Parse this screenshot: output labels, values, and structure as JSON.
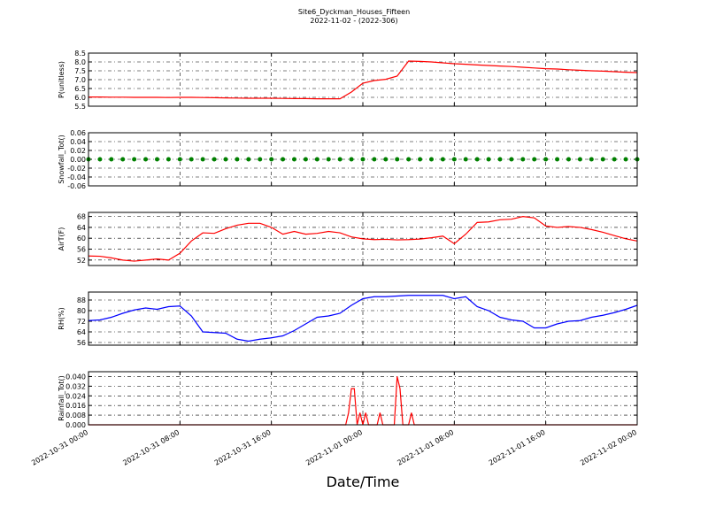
{
  "chart_data": [
    {
      "type": "line",
      "title": "Site6_Dyckman_Houses_Fifteen",
      "subtitle": "2022-11-02 - (2022-306)",
      "ylabel": "P(unitless)",
      "color": "#ff0000",
      "x": [
        "2022-10-31 00:00",
        "2022-10-31 01:00",
        "2022-10-31 02:00",
        "2022-10-31 03:00",
        "2022-10-31 04:00",
        "2022-10-31 05:00",
        "2022-10-31 06:00",
        "2022-10-31 07:00",
        "2022-10-31 08:00",
        "2022-10-31 09:00",
        "2022-10-31 10:00",
        "2022-10-31 11:00",
        "2022-10-31 12:00",
        "2022-10-31 13:00",
        "2022-10-31 14:00",
        "2022-10-31 15:00",
        "2022-10-31 16:00",
        "2022-10-31 17:00",
        "2022-10-31 18:00",
        "2022-10-31 19:00",
        "2022-10-31 20:00",
        "2022-10-31 21:00",
        "2022-10-31 22:00",
        "2022-10-31 23:00",
        "2022-11-01 00:00",
        "2022-11-01 01:00",
        "2022-11-01 02:00",
        "2022-11-01 03:00",
        "2022-11-01 04:00",
        "2022-11-01 05:00",
        "2022-11-01 06:00",
        "2022-11-01 07:00",
        "2022-11-01 08:00",
        "2022-11-01 09:00",
        "2022-11-01 10:00",
        "2022-11-01 11:00",
        "2022-11-01 12:00",
        "2022-11-01 13:00",
        "2022-11-01 14:00",
        "2022-11-01 15:00",
        "2022-11-01 16:00",
        "2022-11-01 17:00",
        "2022-11-01 18:00",
        "2022-11-01 19:00",
        "2022-11-01 20:00",
        "2022-11-01 21:00",
        "2022-11-01 22:00",
        "2022-11-01 23:00",
        "2022-11-02 00:00"
      ],
      "values": [
        6.02,
        6.02,
        6.01,
        6.01,
        6.0,
        6.0,
        6.0,
        5.99,
        6.0,
        6.0,
        5.99,
        5.98,
        5.97,
        5.96,
        5.95,
        5.95,
        5.95,
        5.94,
        5.93,
        5.93,
        5.92,
        5.92,
        5.92,
        6.3,
        6.8,
        6.95,
        7.02,
        7.2,
        8.05,
        8.03,
        8.0,
        7.95,
        7.9,
        7.87,
        7.83,
        7.8,
        7.77,
        7.74,
        7.7,
        7.66,
        7.62,
        7.6,
        7.56,
        7.53,
        7.5,
        7.48,
        7.45,
        7.42,
        7.4
      ],
      "xlim": [
        "2022-10-31 00:00",
        "2022-11-02 00:00"
      ],
      "xticks": [
        "2022-10-31 00:00",
        "2022-10-31 08:00",
        "2022-10-31 16:00",
        "2022-11-01 00:00",
        "2022-11-01 08:00",
        "2022-11-01 16:00",
        "2022-11-02 00:00"
      ],
      "ylim": [
        5.5,
        8.5
      ],
      "yticks": [
        5.5,
        {
          "value": 6,
          "label": "6.0"
        },
        6.5,
        {
          "value": 7,
          "label": "7.0"
        },
        7.5,
        {
          "value": 8,
          "label": "8.0"
        },
        8.5
      ],
      "grid": true
    },
    {
      "type": "scatter",
      "ylabel": "Snowfall_Tot()",
      "color": "#008000",
      "x": [
        "2022-10-31 00:00",
        "2022-10-31 01:00",
        "2022-10-31 02:00",
        "2022-10-31 03:00",
        "2022-10-31 04:00",
        "2022-10-31 05:00",
        "2022-10-31 06:00",
        "2022-10-31 07:00",
        "2022-10-31 08:00",
        "2022-10-31 09:00",
        "2022-10-31 10:00",
        "2022-10-31 11:00",
        "2022-10-31 12:00",
        "2022-10-31 13:00",
        "2022-10-31 14:00",
        "2022-10-31 15:00",
        "2022-10-31 16:00",
        "2022-10-31 17:00",
        "2022-10-31 18:00",
        "2022-10-31 19:00",
        "2022-10-31 20:00",
        "2022-10-31 21:00",
        "2022-10-31 22:00",
        "2022-10-31 23:00",
        "2022-11-01 00:00",
        "2022-11-01 01:00",
        "2022-11-01 02:00",
        "2022-11-01 03:00",
        "2022-11-01 04:00",
        "2022-11-01 05:00",
        "2022-11-01 06:00",
        "2022-11-01 07:00",
        "2022-11-01 08:00",
        "2022-11-01 09:00",
        "2022-11-01 10:00",
        "2022-11-01 11:00",
        "2022-11-01 12:00",
        "2022-11-01 13:00",
        "2022-11-01 14:00",
        "2022-11-01 15:00",
        "2022-11-01 16:00",
        "2022-11-01 17:00",
        "2022-11-01 18:00",
        "2022-11-01 19:00",
        "2022-11-01 20:00",
        "2022-11-01 21:00",
        "2022-11-01 22:00",
        "2022-11-01 23:00",
        "2022-11-02 00:00"
      ],
      "values": [
        0,
        0,
        0,
        0,
        0,
        0,
        0,
        0,
        0,
        0,
        0,
        0,
        0,
        0,
        0,
        0,
        0,
        0,
        0,
        0,
        0,
        0,
        0,
        0,
        0,
        0,
        0,
        0,
        0,
        0,
        0,
        0,
        0,
        0,
        0,
        0,
        0,
        0,
        0,
        0,
        0,
        0,
        0,
        0,
        0,
        0,
        0,
        0,
        0
      ],
      "xlim": [
        "2022-10-31 00:00",
        "2022-11-02 00:00"
      ],
      "xticks": [
        "2022-10-31 00:00",
        "2022-10-31 08:00",
        "2022-10-31 16:00",
        "2022-11-01 00:00",
        "2022-11-01 08:00",
        "2022-11-01 16:00",
        "2022-11-02 00:00"
      ],
      "ylim": [
        -0.06,
        0.06
      ],
      "yticks": [
        -0.06,
        -0.04,
        -0.02,
        {
          "value": 0,
          "label": "0.00"
        },
        0.02,
        0.04,
        0.06
      ],
      "grid": true
    },
    {
      "type": "line",
      "ylabel": "AirT(F)",
      "color": "#ff0000",
      "x": [
        "2022-10-31 00:00",
        "2022-10-31 01:00",
        "2022-10-31 02:00",
        "2022-10-31 03:00",
        "2022-10-31 04:00",
        "2022-10-31 05:00",
        "2022-10-31 06:00",
        "2022-10-31 07:00",
        "2022-10-31 08:00",
        "2022-10-31 09:00",
        "2022-10-31 10:00",
        "2022-10-31 11:00",
        "2022-10-31 12:00",
        "2022-10-31 13:00",
        "2022-10-31 14:00",
        "2022-10-31 15:00",
        "2022-10-31 16:00",
        "2022-10-31 17:00",
        "2022-10-31 18:00",
        "2022-10-31 19:00",
        "2022-10-31 20:00",
        "2022-10-31 21:00",
        "2022-10-31 22:00",
        "2022-10-31 23:00",
        "2022-11-01 00:00",
        "2022-11-01 01:00",
        "2022-11-01 02:00",
        "2022-11-01 03:00",
        "2022-11-01 04:00",
        "2022-11-01 05:00",
        "2022-11-01 06:00",
        "2022-11-01 07:00",
        "2022-11-01 08:00",
        "2022-11-01 09:00",
        "2022-11-01 10:00",
        "2022-11-01 11:00",
        "2022-11-01 12:00",
        "2022-11-01 13:00",
        "2022-11-01 14:00",
        "2022-11-01 15:00",
        "2022-11-01 16:00",
        "2022-11-01 17:00",
        "2022-11-01 18:00",
        "2022-11-01 19:00",
        "2022-11-01 20:00",
        "2022-11-01 21:00",
        "2022-11-01 22:00",
        "2022-11-01 23:00",
        "2022-11-02 00:00"
      ],
      "values": [
        53.5,
        53.4,
        52.8,
        52.0,
        51.6,
        52.0,
        52.4,
        52.0,
        54.5,
        59.0,
        62.0,
        61.8,
        63.5,
        64.8,
        65.5,
        65.5,
        64.0,
        61.5,
        62.5,
        61.5,
        61.8,
        62.5,
        62.0,
        60.5,
        59.8,
        59.5,
        59.6,
        59.4,
        59.5,
        59.7,
        60.2,
        60.8,
        58.0,
        61.5,
        65.8,
        66.0,
        66.8,
        67.0,
        68.0,
        67.5,
        64.5,
        64.0,
        64.3,
        64.0,
        63.2,
        62.2,
        61.0,
        59.8,
        59.0
      ],
      "xlim": [
        "2022-10-31 00:00",
        "2022-11-02 00:00"
      ],
      "xticks": [
        "2022-10-31 00:00",
        "2022-10-31 08:00",
        "2022-10-31 16:00",
        "2022-11-01 00:00",
        "2022-11-01 08:00",
        "2022-11-01 16:00",
        "2022-11-02 00:00"
      ],
      "ylim": [
        50,
        69.5
      ],
      "yticks": [
        52,
        56,
        60,
        64,
        68
      ],
      "grid": true
    },
    {
      "type": "line",
      "ylabel": "RH(%)",
      "color": "#0000ff",
      "x": [
        "2022-10-31 00:00",
        "2022-10-31 01:00",
        "2022-10-31 02:00",
        "2022-10-31 03:00",
        "2022-10-31 04:00",
        "2022-10-31 05:00",
        "2022-10-31 06:00",
        "2022-10-31 07:00",
        "2022-10-31 08:00",
        "2022-10-31 09:00",
        "2022-10-31 10:00",
        "2022-10-31 11:00",
        "2022-10-31 12:00",
        "2022-10-31 13:00",
        "2022-10-31 14:00",
        "2022-10-31 15:00",
        "2022-10-31 16:00",
        "2022-10-31 17:00",
        "2022-10-31 18:00",
        "2022-10-31 19:00",
        "2022-10-31 20:00",
        "2022-10-31 21:00",
        "2022-10-31 22:00",
        "2022-10-31 23:00",
        "2022-11-01 00:00",
        "2022-11-01 01:00",
        "2022-11-01 02:00",
        "2022-11-01 03:00",
        "2022-11-01 04:00",
        "2022-11-01 05:00",
        "2022-11-01 06:00",
        "2022-11-01 07:00",
        "2022-11-01 08:00",
        "2022-11-01 09:00",
        "2022-11-01 10:00",
        "2022-11-01 11:00",
        "2022-11-01 12:00",
        "2022-11-01 13:00",
        "2022-11-01 14:00",
        "2022-11-01 15:00",
        "2022-11-01 16:00",
        "2022-11-01 17:00",
        "2022-11-01 18:00",
        "2022-11-01 19:00",
        "2022-11-01 20:00",
        "2022-11-01 21:00",
        "2022-11-01 22:00",
        "2022-11-01 23:00",
        "2022-11-02 00:00"
      ],
      "values": [
        72.5,
        73,
        75,
        78,
        80.5,
        82,
        81,
        83,
        83.5,
        76,
        64,
        63.5,
        63,
        58.5,
        57,
        58.5,
        59.5,
        61,
        65,
        70,
        75,
        76,
        78,
        84,
        89,
        90.5,
        90.5,
        91,
        91.5,
        91.5,
        91.5,
        91.5,
        89,
        90.5,
        83,
        80,
        75,
        73,
        72,
        67,
        67,
        70,
        72,
        72.5,
        75,
        76.5,
        78.5,
        81,
        84
      ],
      "xlim": [
        "2022-10-31 00:00",
        "2022-11-02 00:00"
      ],
      "xticks": [
        "2022-10-31 00:00",
        "2022-10-31 08:00",
        "2022-10-31 16:00",
        "2022-11-01 00:00",
        "2022-11-01 08:00",
        "2022-11-01 16:00",
        "2022-11-02 00:00"
      ],
      "ylim": [
        54,
        94
      ],
      "yticks": [
        56,
        64,
        72,
        80,
        88
      ],
      "grid": true
    },
    {
      "type": "line",
      "ylabel": "Rainfall_Tot()",
      "xlabel": "Date/Time",
      "color": "#ff0000",
      "x": [
        "2022-10-31 00:00",
        "2022-10-31 22:30",
        "2022-10-31 22:45",
        "2022-10-31 23:00",
        "2022-10-31 23:15",
        "2022-10-31 23:30",
        "2022-10-31 23:45",
        "2022-11-01 00:00",
        "2022-11-01 00:15",
        "2022-11-01 00:30",
        "2022-11-01 01:15",
        "2022-11-01 01:30",
        "2022-11-01 01:45",
        "2022-11-01 02:45",
        "2022-11-01 03:00",
        "2022-11-01 03:15",
        "2022-11-01 03:30",
        "2022-11-01 04:00",
        "2022-11-01 04:15",
        "2022-11-01 04:30",
        "2022-11-02 00:00"
      ],
      "values": [
        0,
        0,
        0.01,
        0.03,
        0.03,
        0,
        0.01,
        0,
        0.01,
        0,
        0,
        0.01,
        0,
        0,
        0.04,
        0.03,
        0,
        0,
        0.01,
        0,
        0
      ],
      "xlim": [
        "2022-10-31 00:00",
        "2022-11-02 00:00"
      ],
      "xticks": [
        "2022-10-31 00:00",
        "2022-10-31 08:00",
        "2022-10-31 16:00",
        "2022-11-01 00:00",
        "2022-11-01 08:00",
        "2022-11-01 16:00",
        "2022-11-02 00:00"
      ],
      "ylim": [
        0,
        0.044
      ],
      "yticks": [
        {
          "value": 0,
          "label": "0.000"
        },
        {
          "value": 0.008,
          "label": "0.008"
        },
        {
          "value": 0.016,
          "label": "0.016"
        },
        {
          "value": 0.024,
          "label": "0.024"
        },
        {
          "value": 0.032,
          "label": "0.032"
        },
        {
          "value": 0.04,
          "label": "0.040"
        }
      ],
      "grid": true
    }
  ]
}
